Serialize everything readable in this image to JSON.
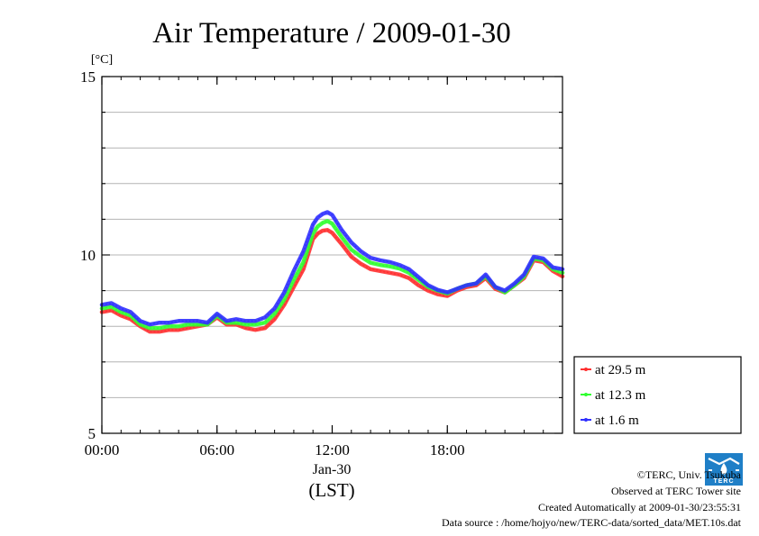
{
  "chart_data": {
    "type": "line",
    "title": "Air Temperature / 2009-01-30",
    "ylabel_unit": "[°C]",
    "ylim": [
      5,
      15
    ],
    "y_ticks": [
      "5",
      "10",
      "15"
    ],
    "y_grid_step": 1,
    "xlim_hours": [
      0,
      24
    ],
    "x_ticks": [
      {
        "hour": 0,
        "label": "00:00"
      },
      {
        "hour": 6,
        "label": "06:00"
      },
      {
        "hour": 12,
        "label": "12:00"
      },
      {
        "hour": 18,
        "label": "18:00"
      }
    ],
    "x_date_label": "Jan-30",
    "x_timezone_label": "(LST)",
    "grid": "horizontal",
    "legend_placement": "right-bottom",
    "x_hours": [
      0,
      0.5,
      1,
      1.5,
      2,
      2.5,
      3,
      3.5,
      4,
      4.5,
      5,
      5.5,
      6,
      6.5,
      7,
      7.5,
      8,
      8.5,
      9,
      9.5,
      10,
      10.5,
      11,
      11.25,
      11.5,
      11.75,
      12,
      12.5,
      13,
      13.5,
      14,
      14.5,
      15,
      15.5,
      16,
      16.5,
      17,
      17.5,
      18,
      18.5,
      19,
      19.5,
      20,
      20.5,
      21,
      21.5,
      22,
      22.5,
      23,
      23.5,
      24
    ],
    "series": [
      {
        "name": "at 29.5 m",
        "color": "#ff3030",
        "values": [
          8.4,
          8.45,
          8.3,
          8.2,
          8.0,
          7.85,
          7.85,
          7.9,
          7.9,
          7.95,
          8.0,
          8.05,
          8.25,
          8.05,
          8.05,
          7.95,
          7.9,
          7.95,
          8.2,
          8.6,
          9.1,
          9.6,
          10.45,
          10.6,
          10.68,
          10.7,
          10.62,
          10.3,
          9.95,
          9.75,
          9.6,
          9.55,
          9.5,
          9.45,
          9.35,
          9.15,
          9.0,
          8.9,
          8.85,
          9.0,
          9.1,
          9.15,
          9.35,
          9.05,
          8.95,
          9.15,
          9.35,
          9.85,
          9.8,
          9.55,
          9.4
        ]
      },
      {
        "name": "at 12.3 m",
        "color": "#30ff30",
        "values": [
          8.5,
          8.55,
          8.4,
          8.3,
          8.05,
          7.95,
          7.95,
          8.0,
          8.0,
          8.05,
          8.05,
          8.05,
          8.3,
          8.1,
          8.1,
          8.05,
          8.05,
          8.1,
          8.35,
          8.75,
          9.3,
          9.8,
          10.6,
          10.8,
          10.9,
          10.95,
          10.88,
          10.5,
          10.15,
          9.95,
          9.78,
          9.72,
          9.68,
          9.62,
          9.5,
          9.3,
          9.1,
          9.0,
          8.92,
          9.05,
          9.15,
          9.2,
          9.4,
          9.1,
          8.95,
          9.15,
          9.4,
          9.9,
          9.85,
          9.6,
          9.5
        ]
      },
      {
        "name": "at 1.6 m",
        "color": "#3030ff",
        "values": [
          8.6,
          8.65,
          8.5,
          8.4,
          8.15,
          8.05,
          8.1,
          8.1,
          8.15,
          8.15,
          8.15,
          8.1,
          8.35,
          8.15,
          8.2,
          8.15,
          8.15,
          8.25,
          8.5,
          8.95,
          9.55,
          10.1,
          10.85,
          11.05,
          11.15,
          11.2,
          11.12,
          10.7,
          10.35,
          10.1,
          9.92,
          9.85,
          9.8,
          9.72,
          9.6,
          9.38,
          9.15,
          9.02,
          8.95,
          9.05,
          9.15,
          9.2,
          9.45,
          9.1,
          9.0,
          9.2,
          9.45,
          9.95,
          9.9,
          9.65,
          9.6
        ]
      }
    ]
  },
  "footer": {
    "copyright": "©TERC, Univ. Tsukuba",
    "observed": "Observed at TERC Tower site",
    "created": "Created Automatically at 2009-01-30/23:55:31",
    "source": "Data source : /home/hojyo/new/TERC-data/sorted_data/MET.10s.dat",
    "logo_text": "TERC"
  }
}
